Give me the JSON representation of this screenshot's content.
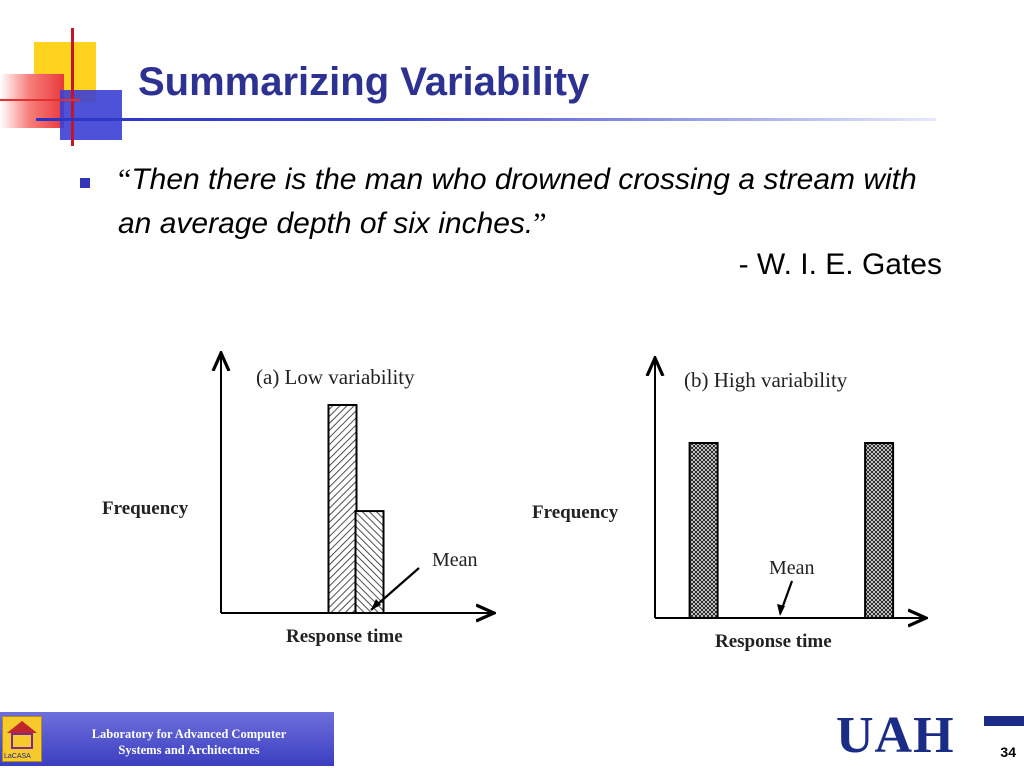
{
  "slide": {
    "title": "Summarizing Variability",
    "quote": {
      "open_mark": "“",
      "text": "Then there is the man who drowned crossing a stream with an average depth of six inches.",
      "close_mark": "”"
    },
    "author": "- W. I. E. Gates",
    "page_number": "34"
  },
  "footer": {
    "lab_line1": "Laboratory for Advanced Computer",
    "lab_line2": "Systems and Architectures",
    "logo_text": "LaCASA",
    "university": "UAH"
  },
  "chart_data": [
    {
      "type": "bar",
      "title": "(a) Low variability",
      "xlabel": "Response time",
      "ylabel": "Frequency",
      "annotation": "Mean",
      "bars": [
        {
          "x": 0.45,
          "value": 1.0
        },
        {
          "x": 0.55,
          "value": 0.49
        }
      ],
      "mean_x": 0.55
    },
    {
      "type": "bar",
      "title": "(b) High variability",
      "xlabel": "Response time",
      "ylabel": "Frequency",
      "annotation": "Mean",
      "bars": [
        {
          "x": 0.18,
          "value": 1.0
        },
        {
          "x": 0.83,
          "value": 1.0
        }
      ],
      "mean_x": 0.5
    }
  ],
  "colors": {
    "title": "#2d3192",
    "bullet": "#3336b8",
    "footer_bg": "#3b3fc0",
    "uah": "#1b2c86"
  }
}
